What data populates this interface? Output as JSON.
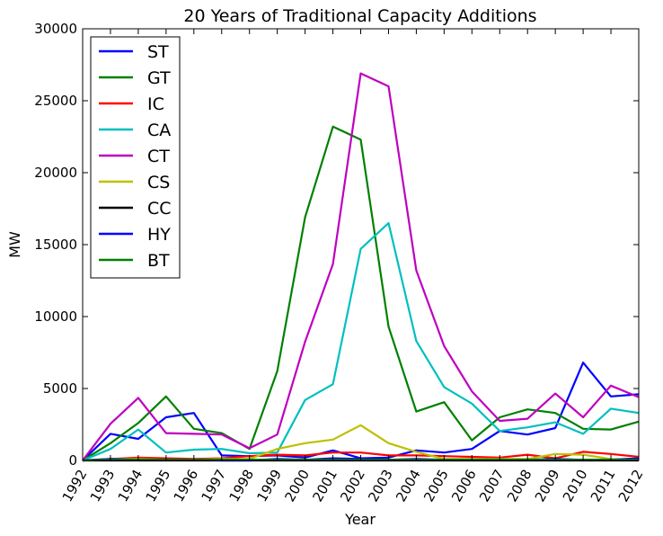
{
  "chart_data": {
    "type": "line",
    "title": "20 Years of Traditional Capacity Additions",
    "xlabel": "Year",
    "ylabel": "MW",
    "xlim": [
      1992,
      2012
    ],
    "ylim": [
      0,
      30000
    ],
    "x": [
      1992,
      1993,
      1994,
      1995,
      1996,
      1997,
      1998,
      1999,
      2000,
      2001,
      2002,
      2003,
      2004,
      2005,
      2006,
      2007,
      2008,
      2009,
      2010,
      2011,
      2012
    ],
    "x_tick_labels": [
      "1992",
      "1993",
      "1994",
      "1995",
      "1996",
      "1997",
      "1998",
      "1999",
      "2000",
      "2001",
      "2002",
      "2003",
      "2004",
      "2005",
      "2006",
      "2007",
      "2008",
      "2009",
      "2010",
      "2011",
      "2012"
    ],
    "y_ticks": [
      0,
      5000,
      10000,
      15000,
      20000,
      25000,
      30000
    ],
    "y_tick_labels": [
      "0",
      "5000",
      "10000",
      "15000",
      "20000",
      "25000",
      "30000"
    ],
    "grid": false,
    "legend_position": "top-left",
    "series": [
      {
        "name": "ST",
        "color": "#0000ff",
        "values": [
          0,
          1850,
          1500,
          3000,
          3300,
          350,
          300,
          350,
          200,
          700,
          150,
          200,
          700,
          550,
          800,
          2050,
          1800,
          2250,
          6800,
          4450,
          4600
        ]
      },
      {
        "name": "GT",
        "color": "#008000",
        "values": [
          0,
          1200,
          2600,
          4450,
          2200,
          1900,
          800,
          6200,
          16900,
          23200,
          22300,
          9300,
          3400,
          4050,
          1400,
          3000,
          3550,
          3300,
          2200,
          2150,
          2700
        ]
      },
      {
        "name": "IC",
        "color": "#ff0000",
        "values": [
          0,
          100,
          200,
          150,
          100,
          150,
          300,
          400,
          350,
          550,
          550,
          350,
          350,
          300,
          250,
          200,
          400,
          150,
          600,
          450,
          250
        ]
      },
      {
        "name": "CA",
        "color": "#00bfbf",
        "values": [
          0,
          800,
          2150,
          550,
          750,
          800,
          500,
          550,
          4200,
          5300,
          14700,
          16500,
          8300,
          5100,
          3950,
          2050,
          2300,
          2650,
          1850,
          3600,
          3300
        ]
      },
      {
        "name": "CT",
        "color": "#bf00bf",
        "values": [
          0,
          2550,
          4350,
          1900,
          1850,
          1800,
          850,
          1800,
          8250,
          13650,
          26900,
          26000,
          13200,
          7950,
          4800,
          2750,
          2900,
          4650,
          3000,
          5200,
          4400
        ]
      },
      {
        "name": "CS",
        "color": "#bfbf00",
        "values": [
          0,
          100,
          100,
          50,
          50,
          100,
          100,
          800,
          1200,
          1450,
          2450,
          1200,
          600,
          100,
          100,
          100,
          100,
          450,
          400,
          100,
          50
        ]
      },
      {
        "name": "CC",
        "color": "#000000",
        "values": [
          0,
          0,
          0,
          0,
          0,
          0,
          0,
          0,
          0,
          0,
          0,
          0,
          0,
          0,
          0,
          0,
          0,
          0,
          0,
          0,
          0
        ]
      },
      {
        "name": "HY",
        "color": "#0000ff",
        "values": [
          0,
          100,
          50,
          50,
          50,
          0,
          0,
          100,
          50,
          150,
          100,
          50,
          100,
          50,
          50,
          50,
          50,
          100,
          50,
          50,
          150
        ]
      },
      {
        "name": "BT",
        "color": "#008000",
        "values": [
          0,
          50,
          50,
          50,
          50,
          50,
          50,
          50,
          50,
          50,
          50,
          50,
          50,
          50,
          50,
          50,
          50,
          50,
          50,
          50,
          50
        ]
      }
    ]
  }
}
